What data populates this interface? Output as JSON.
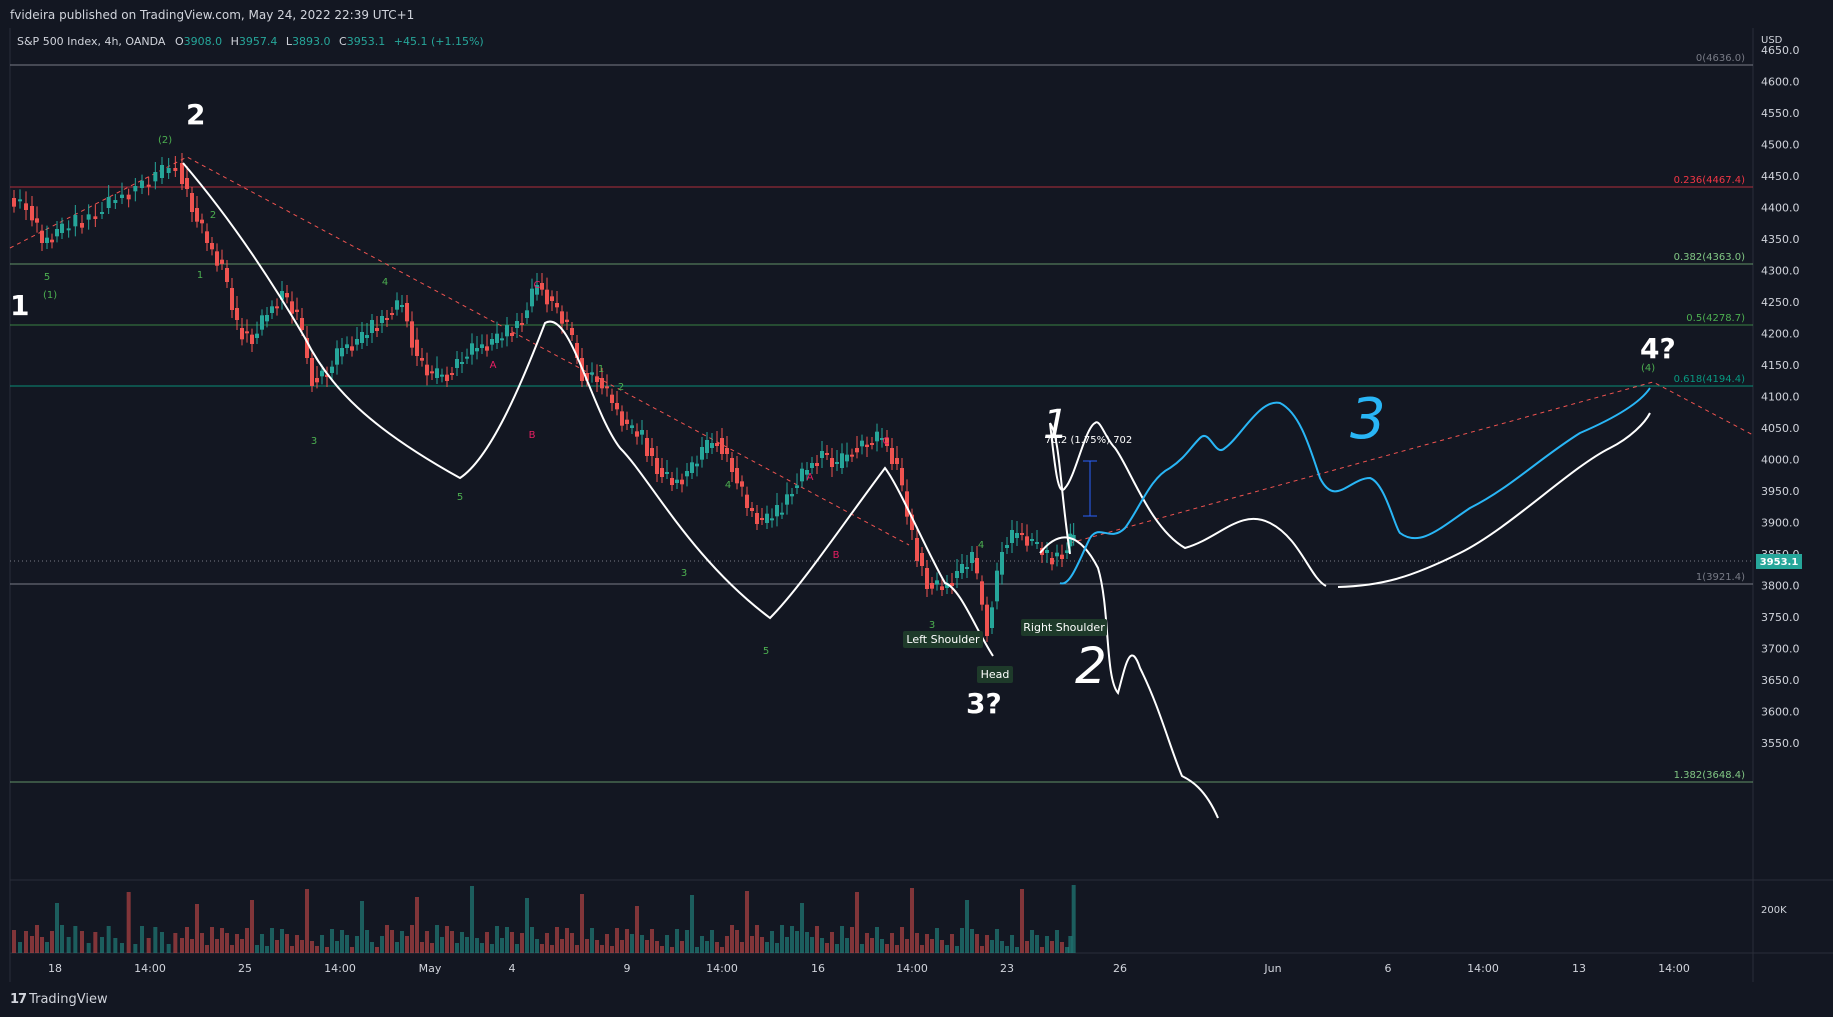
{
  "header": {
    "published": "fvideira published on TradingView.com, May 24, 2022 22:39 UTC+1"
  },
  "legend": {
    "symbol": "S&P 500 Index, 4h, OANDA",
    "o_label": "O",
    "o_val": "3908.0",
    "h_label": "H",
    "h_val": "3957.4",
    "l_label": "L",
    "l_val": "3893.0",
    "c_label": "C",
    "c_val": "3953.1",
    "change": "+45.1 (+1.15%)"
  },
  "colors": {
    "background": "#131722",
    "up": "#26a69a",
    "down": "#ef5350",
    "wave_green": "#4caf50",
    "wave_pink": "#e91e63",
    "cyan": "#29b6f6"
  },
  "axis": {
    "currency": "USD",
    "price_ticks": [
      "4650.0",
      "4600.0",
      "4550.0",
      "4500.0",
      "4450.0",
      "4400.0",
      "4350.0",
      "4300.0",
      "4250.0",
      "4200.0",
      "4150.0",
      "4100.0",
      "4050.0",
      "4000.0",
      "3950.0",
      "3900.0",
      "3850.0",
      "3800.0",
      "3750.0",
      "3700.0",
      "3650.0",
      "3600.0",
      "3550.0"
    ],
    "current_price": "3953.1",
    "volume_tick": "200K",
    "time_ticks": [
      "18",
      "14:00",
      "25",
      "14:00",
      "May",
      "4",
      "9",
      "14:00",
      "16",
      "14:00",
      "23",
      "26",
      "Jun",
      "6",
      "14:00",
      "13",
      "14:00"
    ]
  },
  "fib_levels": [
    {
      "label": "0(4636.0)",
      "color": "#787b86"
    },
    {
      "label": "0.236(4467.4)",
      "color": "#f23645"
    },
    {
      "label": "0.382(4363.0)",
      "color": "#81c784"
    },
    {
      "label": "0.5(4278.7)",
      "color": "#4caf50"
    },
    {
      "label": "0.618(4194.4)",
      "color": "#089981"
    },
    {
      "label": "1(3921.4)",
      "color": "#787b86"
    },
    {
      "label": "1.382(3648.4)",
      "color": "#81c784"
    }
  ],
  "annotations": {
    "wave_1": "1",
    "wave_2": "2",
    "wave_3q": "3?",
    "wave_4q": "4?",
    "sub_2": "(2)",
    "sub_1": "(1)",
    "sub_4": "(4)",
    "small_labels": [
      "5",
      "1",
      "2",
      "3",
      "4",
      "5",
      "1",
      "2",
      "3",
      "4",
      "5",
      "C",
      "A",
      "B",
      "C",
      "A",
      "B",
      "4",
      "3"
    ],
    "left_shoulder": "Left Shoulder",
    "head": "Head",
    "right_shoulder": "Right Shoulder",
    "measure": "70.2 (1.75%) 702",
    "hand_2": "2",
    "hand_3": "3",
    "hand_1": "1"
  },
  "footer": {
    "brand": "TradingView"
  }
}
